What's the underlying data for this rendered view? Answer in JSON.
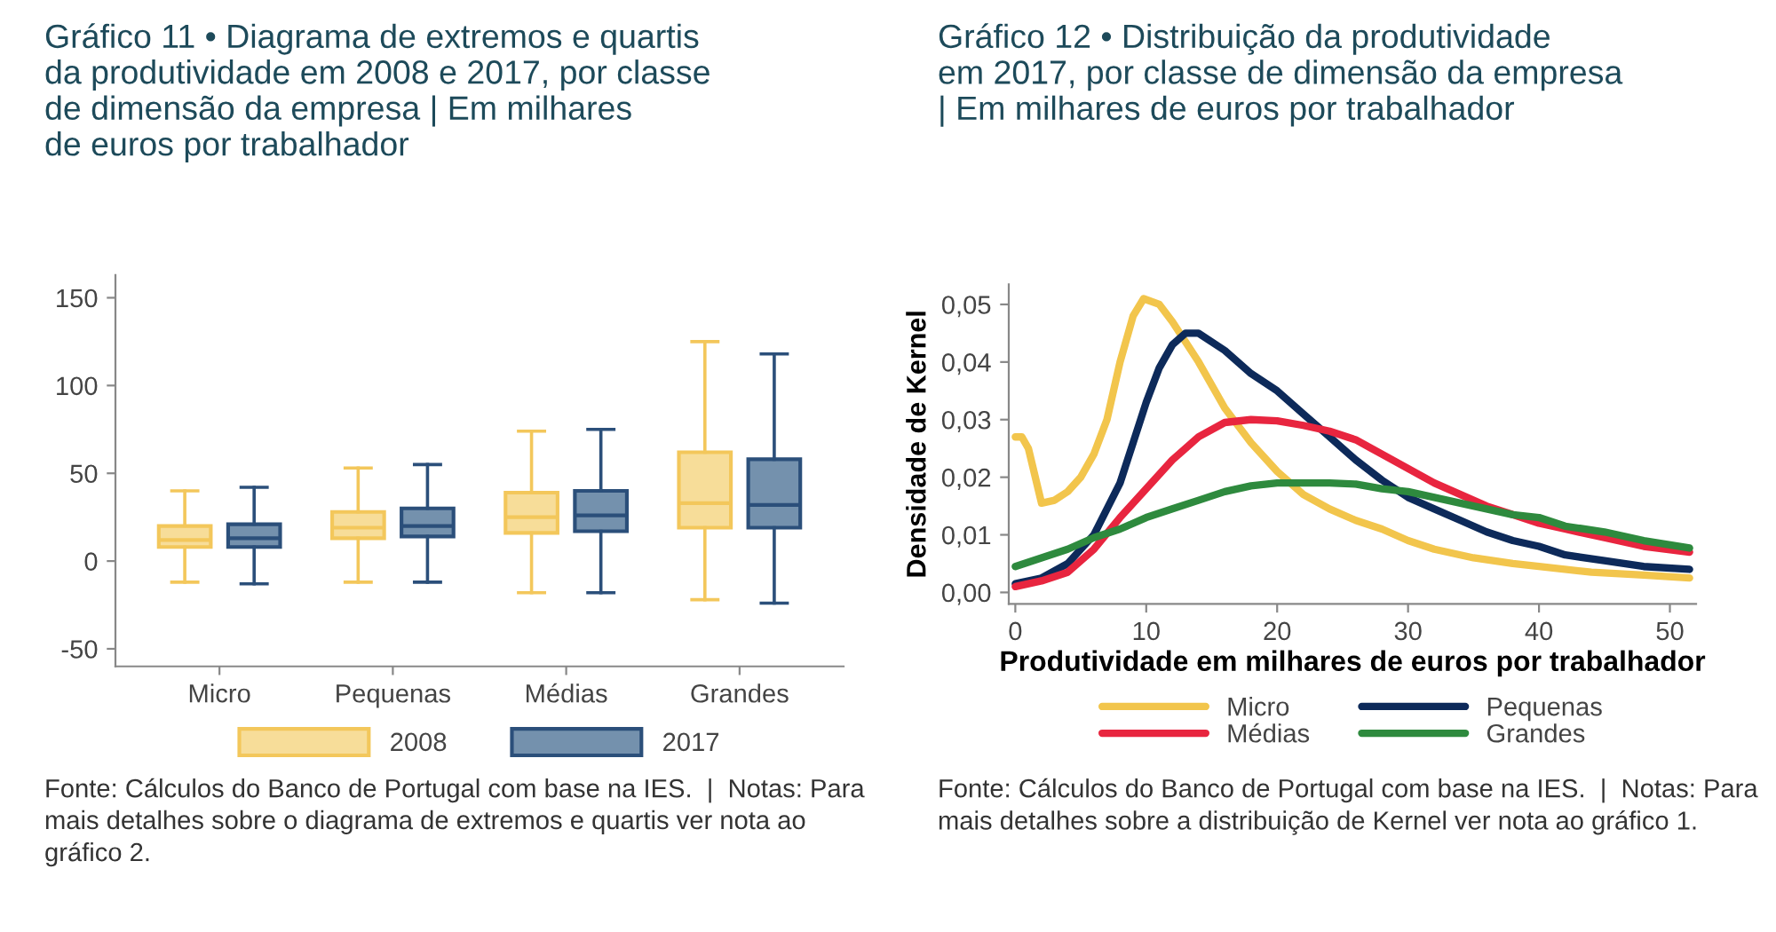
{
  "chart_data": [
    {
      "type": "box",
      "title": "Gráfico 11 • Diagrama de extremos e quartis\nda produtividade em 2008 e 2017, por classe\nde dimensão da empresa | Em milhares\nde euros por trabalhador",
      "categories": [
        "Micro",
        "Pequenas",
        "Médias",
        "Grandes"
      ],
      "series": [
        {
          "name": "2008",
          "color": "#f7dd99",
          "boxes": [
            {
              "low": -12,
              "q1": 8,
              "median": 12,
              "q3": 20,
              "high": 40
            },
            {
              "low": -12,
              "q1": 13,
              "median": 19,
              "q3": 28,
              "high": 53
            },
            {
              "low": -18,
              "q1": 16,
              "median": 25,
              "q3": 39,
              "high": 74
            },
            {
              "low": -22,
              "q1": 19,
              "median": 33,
              "q3": 62,
              "high": 125
            }
          ]
        },
        {
          "name": "2017",
          "color": "#7491ad",
          "boxes": [
            {
              "low": -13,
              "q1": 8,
              "median": 13,
              "q3": 21,
              "high": 42
            },
            {
              "low": -12,
              "q1": 14,
              "median": 20,
              "q3": 30,
              "high": 55
            },
            {
              "low": -18,
              "q1": 17,
              "median": 26,
              "q3": 40,
              "high": 75
            },
            {
              "low": -24,
              "q1": 19,
              "median": 32,
              "q3": 58,
              "high": 118
            }
          ]
        }
      ],
      "ylim": [
        -60,
        163
      ],
      "yticks": [
        -50,
        0,
        50,
        100,
        150
      ],
      "grid": false,
      "legend": "bottom",
      "annotations": [
        "Fonte: Cálculos do Banco de Portugal com base na IES.  |  Notas: Para\nmais detalhes sobre o diagrama de extremos e quartis ver nota ao\ngráfico 2."
      ]
    },
    {
      "type": "line",
      "title": "Gráfico 12 • Distribuição da produtividade\nem 2017, por classe de dimensão da empresa\n| Em milhares de euros por trabalhador",
      "xlabel": "Produtividade em milhares de euros por trabalhador",
      "ylabel": "Densidade de Kernel",
      "series": [
        {
          "name": "Micro",
          "color": "#f2c54c",
          "x": [
            0,
            0.5,
            1,
            2,
            3,
            4,
            5,
            6,
            7,
            8,
            9,
            9.8,
            11,
            12,
            14,
            16,
            18,
            20,
            22,
            24,
            26,
            28,
            30,
            32,
            35,
            38,
            40,
            44,
            48,
            51.5
          ],
          "values": [
            0.027,
            0.027,
            0.025,
            0.0155,
            0.016,
            0.0175,
            0.02,
            0.024,
            0.03,
            0.04,
            0.048,
            0.051,
            0.05,
            0.047,
            0.04,
            0.032,
            0.026,
            0.021,
            0.017,
            0.0145,
            0.0125,
            0.011,
            0.009,
            0.0075,
            0.006,
            0.005,
            0.0045,
            0.0035,
            0.003,
            0.0025
          ]
        },
        {
          "name": "Pequenas",
          "color": "#0d2a5a",
          "x": [
            0,
            2,
            4,
            6,
            8,
            9,
            10,
            11,
            12,
            13,
            14,
            16,
            18,
            20,
            22,
            24,
            26,
            28,
            30,
            32,
            34,
            36,
            38,
            40,
            42,
            45,
            48,
            51.5
          ],
          "values": [
            0.0015,
            0.0025,
            0.005,
            0.01,
            0.019,
            0.026,
            0.033,
            0.039,
            0.043,
            0.045,
            0.045,
            0.042,
            0.038,
            0.035,
            0.031,
            0.027,
            0.023,
            0.0195,
            0.0165,
            0.0145,
            0.0125,
            0.0105,
            0.009,
            0.008,
            0.0065,
            0.0055,
            0.0045,
            0.004
          ]
        },
        {
          "name": "Médias",
          "color": "#e8253f",
          "x": [
            0,
            2,
            4,
            6,
            8,
            10,
            12,
            14,
            16,
            18,
            20,
            22,
            24,
            26,
            28,
            30,
            32,
            34,
            36,
            38,
            40,
            42,
            45,
            48,
            51.5
          ],
          "values": [
            0.001,
            0.002,
            0.0035,
            0.0075,
            0.013,
            0.018,
            0.023,
            0.027,
            0.0295,
            0.03,
            0.0298,
            0.029,
            0.028,
            0.0265,
            0.024,
            0.0215,
            0.019,
            0.017,
            0.015,
            0.0135,
            0.012,
            0.011,
            0.0095,
            0.008,
            0.007
          ]
        },
        {
          "name": "Grandes",
          "color": "#2e8a3e",
          "x": [
            0,
            2,
            4,
            6,
            8,
            10,
            12,
            14,
            16,
            18,
            20,
            22,
            24,
            26,
            28,
            30,
            32,
            34,
            36,
            38,
            40,
            42,
            45,
            48,
            51.5
          ],
          "values": [
            0.0045,
            0.006,
            0.0075,
            0.0095,
            0.011,
            0.013,
            0.0145,
            0.016,
            0.0175,
            0.0185,
            0.019,
            0.019,
            0.019,
            0.0188,
            0.018,
            0.0175,
            0.0165,
            0.0155,
            0.0145,
            0.0135,
            0.013,
            0.0115,
            0.0105,
            0.009,
            0.0077
          ]
        }
      ],
      "xlim": [
        -0.5,
        52
      ],
      "xticks": [
        0,
        10,
        20,
        30,
        40,
        50
      ],
      "ylim": [
        -0.002,
        0.0535
      ],
      "yticks": [
        {
          "value": 0,
          "label": "0,00"
        },
        {
          "value": 0.01,
          "label": "0,01"
        },
        {
          "value": 0.02,
          "label": "0,02"
        },
        {
          "value": 0.03,
          "label": "0,03"
        },
        {
          "value": 0.04,
          "label": "0,04"
        },
        {
          "value": 0.05,
          "label": "0,05"
        }
      ],
      "grid": false,
      "legend": "bottom",
      "marker": "none",
      "line_style": "solid",
      "annotations": [
        "Fonte: Cálculos do Banco de Portugal com base na IES.  |  Notas: Para\nmais detalhes sobre a distribuição de Kernel ver nota ao gráfico 1."
      ]
    }
  ]
}
